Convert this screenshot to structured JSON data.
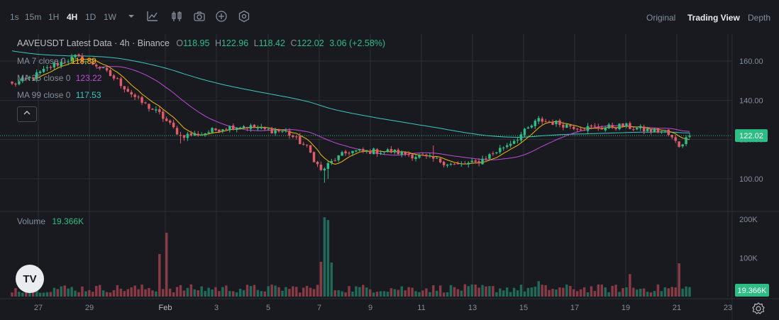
{
  "toolbar": {
    "intervals": [
      "1s",
      "15m",
      "1H",
      "4H",
      "1D",
      "1W"
    ],
    "active_interval": "4H",
    "icons": [
      "chevron-down-icon",
      "indicator-icon",
      "chart-style-icon",
      "camera-icon",
      "add-circle-icon",
      "hexagon-settings-icon"
    ],
    "views": [
      "Original",
      "Trading View",
      "Depth"
    ],
    "active_view": "Trading View"
  },
  "legend": {
    "symbol": "AAVEUSDT Latest Data · 4h · Binance",
    "o_label": "O",
    "o_value": "118.95",
    "h_label": "H",
    "h_value": "122.96",
    "l_label": "L",
    "l_value": "118.42",
    "c_label": "C",
    "c_value": "122.02",
    "change": "3.06 (+2.58%)"
  },
  "ma": [
    {
      "label": "MA 7 close 0",
      "value": "118.89",
      "color": "#f0b90b"
    },
    {
      "label": "MA 25 close 0",
      "value": "123.22",
      "color": "#c04bd6"
    },
    {
      "label": "MA 99 close 0",
      "value": "117.53",
      "color": "#3fc6c0"
    }
  ],
  "volume_label": "Volume",
  "volume_value": "19.366K",
  "collapse_icon": "chevron-up-icon",
  "logo_text": "TV",
  "settings_icon": "gear-icon",
  "colors": {
    "up": "#2ebd85",
    "down": "#e05b68",
    "up_vol": "#1f6b59",
    "down_vol": "#8a3a44",
    "last_price": "#2ebd85"
  },
  "chart_data": {
    "type": "candlestick",
    "price_axis": {
      "ticks": [
        100,
        120,
        140,
        160
      ],
      "tick_labels": [
        "100.00",
        "120.00",
        "140.00",
        "160.00"
      ],
      "range": [
        90,
        168
      ]
    },
    "volume_axis": {
      "ticks": [
        100000,
        200000
      ],
      "tick_labels": [
        "100K",
        "200K"
      ],
      "range": [
        0,
        200000
      ]
    },
    "x_ticks": [
      "27",
      "29",
      "Feb",
      "3",
      "5",
      "7",
      "9",
      "11",
      "13",
      "15",
      "17",
      "19",
      "21",
      "23"
    ],
    "last_price": 122.02,
    "last_price_label": "122.02",
    "last_volume_label": "19.366K",
    "ohlc_waypoints": [
      {
        "i": 0,
        "close": 148
      },
      {
        "i": 6,
        "close": 152
      },
      {
        "i": 12,
        "close": 158
      },
      {
        "i": 18,
        "close": 162
      },
      {
        "i": 24,
        "close": 158
      },
      {
        "i": 30,
        "close": 150
      },
      {
        "i": 36,
        "close": 140
      },
      {
        "i": 42,
        "close": 133
      },
      {
        "i": 48,
        "close": 122
      },
      {
        "i": 54,
        "close": 123
      },
      {
        "i": 60,
        "close": 126
      },
      {
        "i": 66,
        "close": 127
      },
      {
        "i": 72,
        "close": 125
      },
      {
        "i": 78,
        "close": 124
      },
      {
        "i": 84,
        "close": 116
      },
      {
        "i": 88,
        "close": 104
      },
      {
        "i": 92,
        "close": 110
      },
      {
        "i": 96,
        "close": 114
      },
      {
        "i": 102,
        "close": 114
      },
      {
        "i": 108,
        "close": 114
      },
      {
        "i": 114,
        "close": 112
      },
      {
        "i": 120,
        "close": 110
      },
      {
        "i": 126,
        "close": 107
      },
      {
        "i": 132,
        "close": 108
      },
      {
        "i": 138,
        "close": 114
      },
      {
        "i": 144,
        "close": 121
      },
      {
        "i": 150,
        "close": 130
      },
      {
        "i": 156,
        "close": 128
      },
      {
        "i": 162,
        "close": 126
      },
      {
        "i": 168,
        "close": 126
      },
      {
        "i": 174,
        "close": 127
      },
      {
        "i": 180,
        "close": 125
      },
      {
        "i": 186,
        "close": 124
      },
      {
        "i": 190,
        "close": 117
      },
      {
        "i": 193,
        "close": 122
      }
    ],
    "volume_spikes": [
      {
        "i": 42,
        "volume": 110000
      },
      {
        "i": 44,
        "volume": 165000
      },
      {
        "i": 88,
        "volume": 90000
      },
      {
        "i": 89,
        "volume": 205000
      },
      {
        "i": 90,
        "volume": 198000
      },
      {
        "i": 91,
        "volume": 88000
      },
      {
        "i": 150,
        "volume": 40000
      },
      {
        "i": 176,
        "volume": 58000
      },
      {
        "i": 190,
        "volume": 86000
      }
    ],
    "candle_count": 194
  }
}
